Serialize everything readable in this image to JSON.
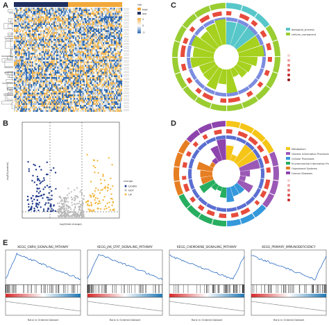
{
  "panels": {
    "a": "A",
    "b": "B",
    "c": "C",
    "d": "D",
    "e": "E"
  },
  "heatmap": {
    "legend_title": "risk",
    "legend_high": "high",
    "legend_low": "low",
    "scale_ticks": [
      "2",
      "0",
      "-2"
    ],
    "colors": {
      "high": "#f2a93b",
      "low": "#1f2f60",
      "pos": "#f0b24a",
      "neg": "#2a66b0"
    }
  },
  "volcano": {
    "ylabel": "-log10(pvalue)",
    "xlabel": "log2(fold change)",
    "legend_title": "change",
    "legend_items": [
      {
        "label": "DOWN",
        "color": "#1f3a8a"
      },
      {
        "label": "NOT",
        "color": "#b8b8b8"
      },
      {
        "label": "UP",
        "color": "#f4b942"
      }
    ]
  },
  "circle_c": {
    "legend_ontology": [
      "biological_process",
      "cellular_component"
    ],
    "colors": [
      "#57c7c9",
      "#9acd32",
      "#e74c3c",
      "#6b7fd7"
    ]
  },
  "circle_d": {
    "legend_items": [
      "Metabolism",
      "Genetic Information Processing",
      "Cellular Processes",
      "Environmental Information Processing",
      "Organismal Systems",
      "Human Diseases"
    ],
    "colors": [
      "#f5c518",
      "#9b59b6",
      "#3498db",
      "#27ae60",
      "#e67e22",
      "#8e44ad"
    ]
  },
  "gsea": [
    {
      "title": "KEGG_GNRH_SIGNALING_PATHWAY",
      "shape": "up"
    },
    {
      "title": "KEGG_JAK_STAT_SIGNALING_PATHWAY",
      "shape": "up"
    },
    {
      "title": "KEGG_CHEMOKINE_SIGNALING_PATHWAY",
      "shape": "down"
    },
    {
      "title": "KEGG_PRIMARY_IMMUNODEFICIENCY",
      "shape": "down"
    }
  ],
  "gsea_axis": {
    "ylabel_es": "Enrichment Score",
    "ylabel_rank": "Ranked list metric",
    "xlabel": "Rank in Ordered Dataset"
  },
  "chart_data": [
    {
      "type": "scatter",
      "name": "volcano",
      "xlabel": "log2(fold change)",
      "ylabel": "-log10(pvalue)",
      "xlim": [
        -2,
        2
      ],
      "ylim": [
        0,
        7
      ],
      "groups": [
        "DOWN",
        "NOT",
        "UP"
      ]
    },
    {
      "type": "line",
      "name": "gsea",
      "series": [
        {
          "name": "KEGG_GNRH_SIGNALING_PATHWAY"
        },
        {
          "name": "KEGG_JAK_STAT_SIGNALING_PATHWAY"
        },
        {
          "name": "KEGG_CHEMOKINE_SIGNALING_PATHWAY"
        },
        {
          "name": "KEGG_PRIMARY_IMMUNODEFICIENCY"
        }
      ]
    }
  ]
}
